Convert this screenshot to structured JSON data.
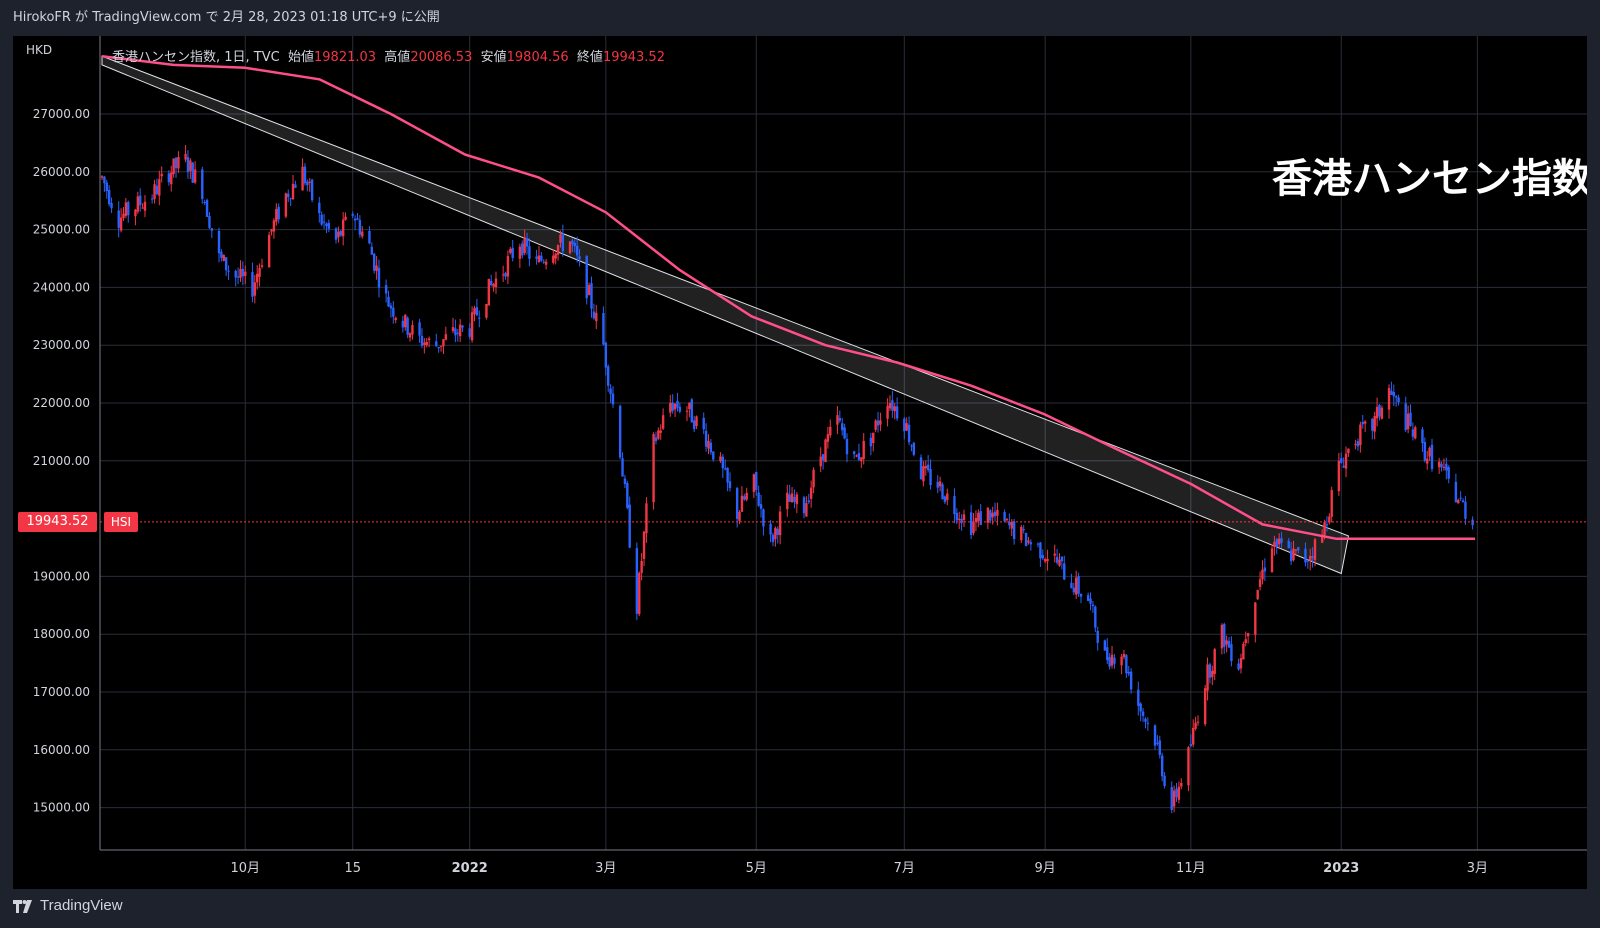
{
  "header": {
    "publish_line": "HirokoFR が TradingView.com で 2月 28, 2023 01:18 UTC+9 に公開"
  },
  "footer": {
    "brand": "TradingView"
  },
  "legend": {
    "symbol_desc": "香港ハンセン指数, 1日, TVC",
    "open_label": "始値",
    "open": "19821.03",
    "high_label": "高値",
    "high": "20086.53",
    "low_label": "安値",
    "low": "19804.56",
    "close_label": "終値",
    "close": "19943.52"
  },
  "overlay_title": "香港ハンセン指数",
  "last_price": {
    "value": "19943.52",
    "symbol": "HSI"
  },
  "colors": {
    "up": "#f23645",
    "down": "#2962ff",
    "ma": "#ff4f8b",
    "grid": "#2a2e39",
    "axis_text": "#d1d4dc",
    "channel_fill": "#ffffff"
  },
  "chart_data": {
    "type": "candlestick",
    "currency": "HKD",
    "y_ticks": [
      "27000.00",
      "26000.00",
      "25000.00",
      "24000.00",
      "23000.00",
      "22000.00",
      "21000.00",
      "19000.00",
      "18000.00",
      "17000.00",
      "16000.00",
      "15000.00"
    ],
    "y_range": [
      14400,
      28400
    ],
    "x_range": [
      "2021-08-02",
      "2023-03-31"
    ],
    "x_ticks": [
      {
        "label": "10月",
        "date": "2021-10-01"
      },
      {
        "label": "15",
        "date": "2021-11-15"
      },
      {
        "label": "2022",
        "date": "2022-01-03"
      },
      {
        "label": "3月",
        "date": "2022-03-01"
      },
      {
        "label": "5月",
        "date": "2022-05-03"
      },
      {
        "label": "7月",
        "date": "2022-07-04"
      },
      {
        "label": "9月",
        "date": "2022-09-01"
      },
      {
        "label": "11月",
        "date": "2022-11-01"
      },
      {
        "label": "2023",
        "date": "2023-01-03"
      },
      {
        "label": "3月",
        "date": "2023-03-01"
      }
    ],
    "price_path": [
      [
        "2021-08-02",
        25900
      ],
      [
        "2021-08-09",
        25200
      ],
      [
        "2021-08-16",
        25400
      ],
      [
        "2021-08-23",
        25600
      ],
      [
        "2021-08-30",
        26000
      ],
      [
        "2021-09-06",
        26200
      ],
      [
        "2021-09-13",
        25700
      ],
      [
        "2021-09-20",
        24500
      ],
      [
        "2021-09-27",
        24200
      ],
      [
        "2021-10-04",
        24000
      ],
      [
        "2021-10-11",
        24900
      ],
      [
        "2021-10-18",
        25600
      ],
      [
        "2021-10-25",
        26000
      ],
      [
        "2021-11-01",
        25200
      ],
      [
        "2021-11-08",
        24800
      ],
      [
        "2021-11-15",
        25300
      ],
      [
        "2021-11-22",
        24700
      ],
      [
        "2021-11-29",
        23800
      ],
      [
        "2021-12-06",
        23400
      ],
      [
        "2021-12-13",
        23100
      ],
      [
        "2021-12-20",
        23000
      ],
      [
        "2021-12-27",
        23200
      ],
      [
        "2022-01-03",
        23300
      ],
      [
        "2022-01-10",
        23900
      ],
      [
        "2022-01-17",
        24300
      ],
      [
        "2022-01-24",
        24800
      ],
      [
        "2022-01-31",
        24400
      ],
      [
        "2022-02-07",
        24700
      ],
      [
        "2022-02-14",
        24800
      ],
      [
        "2022-02-21",
        24000
      ],
      [
        "2022-02-28",
        23000
      ],
      [
        "2022-03-07",
        21200
      ],
      [
        "2022-03-14",
        18500
      ],
      [
        "2022-03-21",
        21300
      ],
      [
        "2022-03-28",
        22000
      ],
      [
        "2022-04-04",
        21900
      ],
      [
        "2022-04-11",
        21500
      ],
      [
        "2022-04-18",
        20900
      ],
      [
        "2022-04-25",
        20100
      ],
      [
        "2022-05-02",
        20600
      ],
      [
        "2022-05-09",
        19600
      ],
      [
        "2022-05-16",
        20300
      ],
      [
        "2022-05-23",
        20200
      ],
      [
        "2022-05-30",
        21100
      ],
      [
        "2022-06-06",
        21700
      ],
      [
        "2022-06-13",
        21000
      ],
      [
        "2022-06-20",
        21400
      ],
      [
        "2022-06-27",
        22100
      ],
      [
        "2022-07-04",
        21700
      ],
      [
        "2022-07-11",
        20800
      ],
      [
        "2022-07-18",
        20600
      ],
      [
        "2022-07-25",
        20200
      ],
      [
        "2022-08-01",
        19900
      ],
      [
        "2022-08-08",
        20100
      ],
      [
        "2022-08-15",
        19900
      ],
      [
        "2022-08-22",
        19700
      ],
      [
        "2022-08-29",
        19500
      ],
      [
        "2022-09-05",
        19300
      ],
      [
        "2022-09-12",
        18900
      ],
      [
        "2022-09-19",
        18600
      ],
      [
        "2022-09-26",
        17600
      ],
      [
        "2022-10-03",
        17700
      ],
      [
        "2022-10-10",
        16800
      ],
      [
        "2022-10-17",
        16200
      ],
      [
        "2022-10-24",
        15000
      ],
      [
        "2022-10-31",
        15900
      ],
      [
        "2022-11-07",
        17200
      ],
      [
        "2022-11-14",
        18000
      ],
      [
        "2022-11-21",
        17500
      ],
      [
        "2022-11-28",
        18700
      ],
      [
        "2022-12-05",
        19600
      ],
      [
        "2022-12-12",
        19400
      ],
      [
        "2022-12-19",
        19300
      ],
      [
        "2022-12-26",
        19700
      ],
      [
        "2023-01-02",
        20900
      ],
      [
        "2023-01-09",
        21400
      ],
      [
        "2023-01-16",
        21600
      ],
      [
        "2023-01-23",
        22200
      ],
      [
        "2023-01-30",
        21700
      ],
      [
        "2023-02-06",
        21200
      ],
      [
        "2023-02-13",
        20900
      ],
      [
        "2023-02-20",
        20400
      ],
      [
        "2023-02-27",
        19943.52
      ]
    ],
    "ma_path": [
      [
        "2021-08-02",
        28000
      ],
      [
        "2021-09-01",
        27850
      ],
      [
        "2021-10-01",
        27800
      ],
      [
        "2021-11-01",
        27600
      ],
      [
        "2021-12-01",
        27000
      ],
      [
        "2022-01-01",
        26300
      ],
      [
        "2022-02-01",
        25900
      ],
      [
        "2022-03-01",
        25300
      ],
      [
        "2022-04-01",
        24300
      ],
      [
        "2022-05-01",
        23500
      ],
      [
        "2022-06-01",
        23000
      ],
      [
        "2022-07-01",
        22700
      ],
      [
        "2022-08-01",
        22300
      ],
      [
        "2022-09-01",
        21800
      ],
      [
        "2022-10-01",
        21200
      ],
      [
        "2022-11-01",
        20600
      ],
      [
        "2022-12-01",
        19900
      ],
      [
        "2023-01-01",
        19650
      ],
      [
        "2023-02-01",
        19650
      ],
      [
        "2023-02-28",
        19650
      ]
    ],
    "trend_channel": {
      "upper": [
        [
          "2021-08-02",
          28000
        ],
        [
          "2023-01-06",
          19700
        ]
      ],
      "lower": [
        [
          "2021-08-02",
          27850
        ],
        [
          "2023-01-03",
          19050
        ]
      ]
    }
  }
}
